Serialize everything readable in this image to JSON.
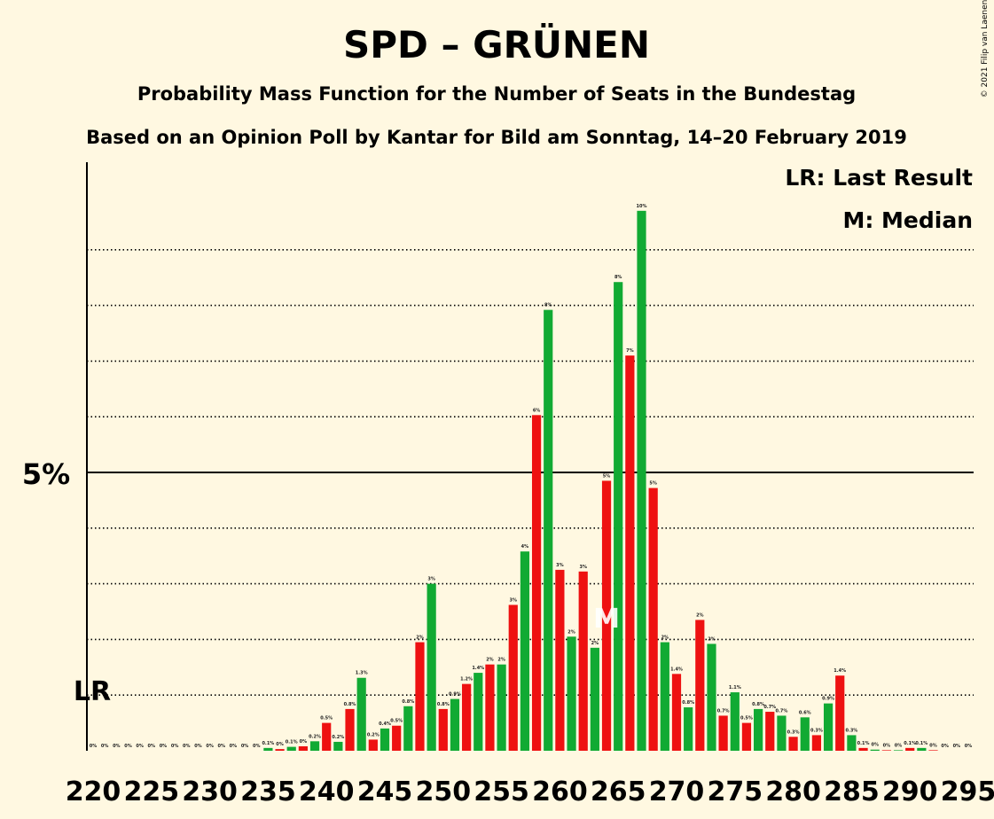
{
  "chart_data": {
    "type": "bar",
    "title": "SPD – GRÜNEN",
    "subtitle": "Probability Mass Function for the Number of Seats in the Bundestag",
    "subtitle2": "Based on an Opinion Poll by Kantar for Bild am Sonntag, 14–20 February 2019",
    "copyright": "© 2021 Filip van Laenen",
    "legend": {
      "lr": "LR: Last Result",
      "median": "M: Median"
    },
    "ytick_label": "5%",
    "ytick_value": 5,
    "lr_label": "LR",
    "lr_seat": 220,
    "median_label": "M",
    "median_seat": 264,
    "x_tick_labels": [
      "220",
      "225",
      "230",
      "235",
      "240",
      "245",
      "250",
      "255",
      "260",
      "265",
      "270",
      "275",
      "280",
      "285",
      "290",
      "295"
    ],
    "x_ticks": [
      220,
      225,
      230,
      235,
      240,
      245,
      250,
      255,
      260,
      265,
      270,
      275,
      280,
      285,
      290,
      295
    ],
    "ylim": [
      0,
      10.6
    ],
    "grid_lines": [
      1,
      2,
      3,
      4,
      6,
      7,
      8,
      9
    ],
    "colors": {
      "red": "#ee1111",
      "green": "#11aa33",
      "background": "#fff8e1"
    },
    "seats": [
      220,
      221,
      222,
      223,
      224,
      225,
      226,
      227,
      228,
      229,
      230,
      231,
      232,
      233,
      234,
      235,
      236,
      237,
      238,
      239,
      240,
      241,
      242,
      243,
      244,
      245,
      246,
      247,
      248,
      249,
      250,
      251,
      252,
      253,
      254,
      255,
      256,
      257,
      258,
      259,
      260,
      261,
      262,
      263,
      264,
      265,
      266,
      267,
      268,
      269,
      270,
      271,
      272,
      273,
      274,
      275,
      276,
      277,
      278,
      279,
      280,
      281,
      282,
      283,
      284,
      285,
      286,
      287,
      288,
      289,
      290,
      291,
      292,
      293,
      294,
      295
    ],
    "values": [
      0,
      0,
      0,
      0,
      0,
      0,
      0,
      0,
      0,
      0,
      0,
      0,
      0,
      0,
      0,
      0.1,
      0,
      0.1,
      0,
      0.2,
      0.5,
      0.2,
      0.8,
      1.3,
      0.2,
      0.4,
      0.5,
      0.8,
      2,
      3,
      0.8,
      0.9,
      1.2,
      1.4,
      2,
      2,
      3,
      4,
      6,
      8,
      3,
      2,
      3,
      2,
      5,
      8,
      7,
      10,
      5,
      2,
      1.4,
      0.8,
      2,
      2,
      0.7,
      1.1,
      0.5,
      0.8,
      0.7,
      0.7,
      0.3,
      0.6,
      0.3,
      0.9,
      1.4,
      0.3,
      0.1,
      0,
      0,
      0,
      0.1,
      0.1,
      0,
      0,
      0,
      0
    ],
    "heights": [
      0,
      0,
      0,
      0,
      0,
      0,
      0,
      0,
      0,
      0,
      0,
      0,
      0,
      0,
      0,
      0.05,
      0.03,
      0.07,
      0.08,
      0.17,
      0.5,
      0.16,
      0.75,
      1.31,
      0.2,
      0.4,
      0.45,
      0.8,
      1.95,
      3.0,
      0.75,
      0.93,
      1.2,
      1.4,
      1.55,
      1.55,
      2.62,
      3.58,
      6.03,
      7.92,
      3.25,
      2.05,
      3.22,
      1.85,
      4.85,
      8.42,
      7.1,
      9.7,
      4.72,
      1.95,
      1.38,
      0.78,
      2.35,
      1.92,
      0.63,
      1.05,
      0.5,
      0.75,
      0.7,
      0.63,
      0.25,
      0.6,
      0.28,
      0.85,
      1.35,
      0.28,
      0.05,
      0.02,
      0.01,
      0.01,
      0.05,
      0.05,
      0.01,
      0,
      0,
      0
    ],
    "labels": [
      "0%",
      "0%",
      "0%",
      "0%",
      "0%",
      "0%",
      "0%",
      "0%",
      "0%",
      "0%",
      "0%",
      "0%",
      "0%",
      "0%",
      "0%",
      "0.1%",
      "0%",
      "0.1%",
      "0%",
      "0.2%",
      "0.5%",
      "0.2%",
      "0.8%",
      "1.3%",
      "0.2%",
      "0.4%",
      "0.5%",
      "0.8%",
      "2%",
      "3%",
      "0.8%",
      "0.9%",
      "1.2%",
      "1.4%",
      "2%",
      "2%",
      "3%",
      "4%",
      "6%",
      "8%",
      "3%",
      "2%",
      "3%",
      "2%",
      "5%",
      "8%",
      "7%",
      "10%",
      "5%",
      "2%",
      "1.4%",
      "0.8%",
      "2%",
      "2%",
      "0.7%",
      "1.1%",
      "0.5%",
      "0.8%",
      "0.7%",
      "0.7%",
      "0.3%",
      "0.6%",
      "0.3%",
      "0.9%",
      "1.4%",
      "0.3%",
      "0.1%",
      "0%",
      "0%",
      "0%",
      "0.1%",
      "0.1%",
      "0%",
      "0%",
      "0%",
      "0%"
    ]
  }
}
